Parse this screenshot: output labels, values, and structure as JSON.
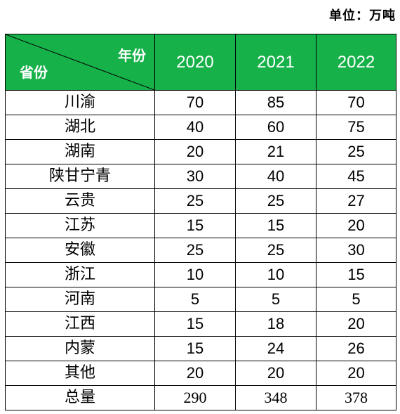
{
  "unit": "单位：万吨",
  "header": {
    "corner_top": "年份",
    "corner_bottom": "省份",
    "years": [
      "2020",
      "2021",
      "2022"
    ]
  },
  "rows": [
    {
      "province": "川渝",
      "values": [
        "70",
        "85",
        "70"
      ]
    },
    {
      "province": "湖北",
      "values": [
        "40",
        "60",
        "75"
      ]
    },
    {
      "province": "湖南",
      "values": [
        "20",
        "21",
        "25"
      ]
    },
    {
      "province": "陕甘宁青",
      "values": [
        "30",
        "40",
        "45"
      ]
    },
    {
      "province": "云贵",
      "values": [
        "25",
        "25",
        "27"
      ]
    },
    {
      "province": "江苏",
      "values": [
        "15",
        "15",
        "20"
      ]
    },
    {
      "province": "安徽",
      "values": [
        "25",
        "25",
        "30"
      ]
    },
    {
      "province": "浙江",
      "values": [
        "10",
        "10",
        "15"
      ]
    },
    {
      "province": "河南",
      "values": [
        "5",
        "5",
        "5"
      ]
    },
    {
      "province": "江西",
      "values": [
        "15",
        "18",
        "20"
      ]
    },
    {
      "province": "内蒙",
      "values": [
        "15",
        "24",
        "26"
      ]
    },
    {
      "province": "其他",
      "values": [
        "20",
        "20",
        "20"
      ]
    }
  ],
  "total": {
    "province": "总量",
    "values": [
      "290",
      "348",
      "378"
    ]
  },
  "colors": {
    "header_bg": "#17b14a",
    "header_text": "#ffffff",
    "border": "#000000"
  }
}
